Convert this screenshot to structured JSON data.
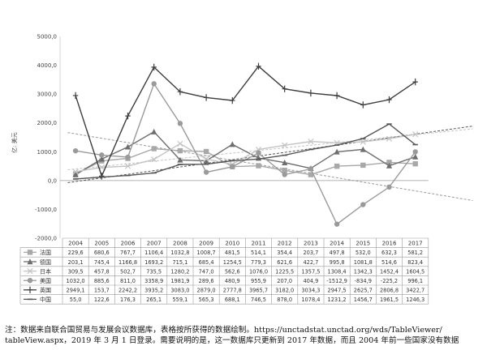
{
  "chart_data": {
    "type": "line",
    "ylabel": "亿: 美元",
    "ylim": [
      -2000,
      5000
    ],
    "yticks": [
      "5000,0",
      "4000,0",
      "3000,0",
      "2000,0",
      "1000,0",
      "0,0",
      "-1000,0",
      "-2000,0"
    ],
    "ytick_values": [
      5000,
      4000,
      3000,
      2000,
      1000,
      0,
      -1000,
      -2000
    ],
    "categories": [
      "2004",
      "2005",
      "2006",
      "2007",
      "2008",
      "2009",
      "2010",
      "2011",
      "2012",
      "2013",
      "2014",
      "2015",
      "2016",
      "2017"
    ],
    "grid": false,
    "trendlines": true,
    "series": [
      {
        "name": "法国",
        "marker": "square",
        "color": "#a8a8a8",
        "values": [
          229.6,
          680.6,
          767.7,
          1106.4,
          1032.8,
          1008.7,
          481.5,
          514.1,
          354.4,
          203.7,
          497.8,
          532.0,
          632.3,
          581.2
        ],
        "labels": [
          "229,6",
          "680,6",
          "767,7",
          "1106,4",
          "1032,8",
          "1008,7",
          "481,5",
          "514,1",
          "354,4",
          "203,7",
          "497,8",
          "532,0",
          "632,3",
          "581,2"
        ]
      },
      {
        "name": "德国",
        "marker": "triangle",
        "color": "#6e6e6e",
        "values": [
          203.1,
          745.4,
          1166.8,
          1693.2,
          715.1,
          685.4,
          1254.5,
          779.3,
          621.6,
          422.7,
          995.8,
          1081.8,
          514.6,
          823.4
        ],
        "labels": [
          "203,1",
          "745,4",
          "1166,8",
          "1693,2",
          "715,1",
          "685,4",
          "1254,5",
          "779,3",
          "621,6",
          "422,7",
          "995,8",
          "1081,8",
          "514,6",
          "823,4"
        ]
      },
      {
        "name": "日本",
        "marker": "x",
        "color": "#c4c4c4",
        "values": [
          309.5,
          457.8,
          502.7,
          735.5,
          1280.2,
          747.0,
          562.6,
          1076.0,
          1225.5,
          1357.5,
          1308.4,
          1342.3,
          1452.4,
          1604.5
        ],
        "labels": [
          "309,5",
          "457,8",
          "502,7",
          "735,5",
          "1280,2",
          "747,0",
          "562,6",
          "1076,0",
          "1225,5",
          "1357,5",
          "1308,4",
          "1342,3",
          "1452,4",
          "1604,5"
        ]
      },
      {
        "name": "美国",
        "marker": "circle",
        "color": "#9a9a9a",
        "values": [
          1032.0,
          885.6,
          811.0,
          3358.9,
          1981.9,
          289.6,
          480.9,
          955.9,
          207.0,
          404.9,
          -1512.9,
          -834.9,
          -225.2,
          996.1
        ],
        "labels": [
          "1032,0",
          "885,6",
          "811,0",
          "3358,9",
          "1981,9",
          "289,6",
          "480,9",
          "955,9",
          "207,0",
          "404,9",
          "-1512,9",
          "-834,9",
          "-225,2",
          "996,1"
        ]
      },
      {
        "name": "英国",
        "marker": "plus",
        "color": "#3d3d3d",
        "values": [
          2949.1,
          153.7,
          2242.2,
          3935.2,
          3083.0,
          2879.0,
          2777.8,
          3965.7,
          3182.0,
          3034.3,
          2947.5,
          2625.7,
          2806.8,
          3422.7
        ],
        "labels": [
          "2949,1",
          "153,7",
          "2242,2",
          "3935,2",
          "3083,0",
          "2879,0",
          "2777,8",
          "3965,7",
          "3182,0",
          "3034,3",
          "2947,5",
          "2625,7",
          "2806,8",
          "3422,7"
        ]
      },
      {
        "name": "中国",
        "marker": "dash",
        "color": "#555555",
        "values": [
          55.0,
          122.6,
          176.3,
          265.1,
          559.1,
          565.3,
          688.1,
          746.5,
          878.0,
          1078.4,
          1231.2,
          1456.7,
          1961.5,
          1246.3
        ],
        "labels": [
          "55,0",
          "122,6",
          "176,3",
          "265,1",
          "559,1",
          "565,3",
          "688,1",
          "746,5",
          "878,0",
          "1078,4",
          "1231,2",
          "1456,7",
          "1961,5",
          "1246,3"
        ]
      }
    ]
  },
  "note": {
    "line1": "注：数据来自联合国贸易与发展会议数据库，表格按所获得的数据绘制。https://unctadstat.unctad.org/wds/TableViewer/",
    "line2": "tableView.aspx，2019 年 3 月 1 日登录。需要说明的是，这一数据库只更新到 2017 年数据，而且 2004 年前一些国家没有数据"
  }
}
